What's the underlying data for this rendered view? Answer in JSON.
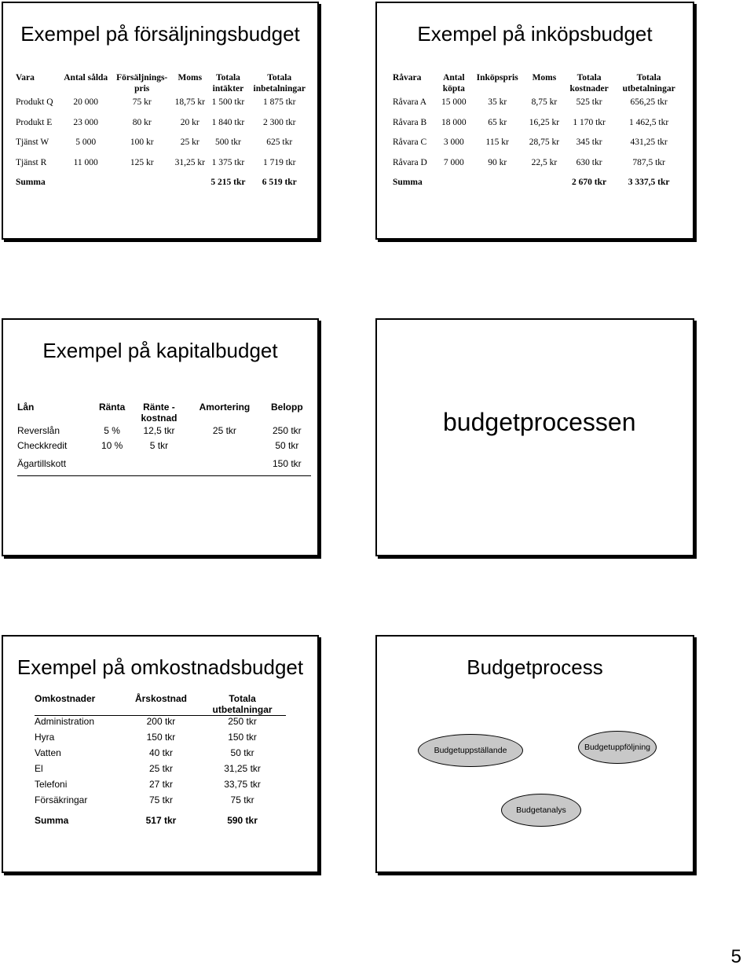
{
  "slide1": {
    "title": "Exempel på försäljningsbudget",
    "headers": [
      "Vara",
      "Antal sålda",
      "Försäljnings-\npris",
      "Moms",
      "Totala\nintäkter",
      "Totala\ninbetalningar"
    ],
    "rows": [
      [
        "Produkt Q",
        "20 000",
        "75 kr",
        "18,75 kr",
        "1 500 tkr",
        "1 875 tkr"
      ],
      [
        "Produkt E",
        "23 000",
        "80 kr",
        "20 kr",
        "1 840 tkr",
        "2 300 tkr"
      ],
      [
        "Tjänst W",
        "5 000",
        "100 kr",
        "25 kr",
        "500 tkr",
        "625 tkr"
      ],
      [
        "Tjänst R",
        "11 000",
        "125 kr",
        "31,25 kr",
        "1 375 tkr",
        "1 719 tkr"
      ]
    ],
    "summa": [
      "Summa",
      "",
      "",
      "",
      "5 215 tkr",
      "6 519 tkr"
    ]
  },
  "slide2": {
    "title": "Exempel på inköpsbudget",
    "headers": [
      "Råvara",
      "Antal\nköpta",
      "Inköpspris",
      "Moms",
      "Totala\nkostnader",
      "Totala\nutbetalningar"
    ],
    "rows": [
      [
        "Råvara A",
        "15 000",
        "35 kr",
        "8,75 kr",
        "525 tkr",
        "656,25 tkr"
      ],
      [
        "Råvara B",
        "18 000",
        "65 kr",
        "16,25 kr",
        "1 170 tkr",
        "1 462,5 tkr"
      ],
      [
        "Råvara C",
        "3 000",
        "115 kr",
        "28,75 kr",
        "345 tkr",
        "431,25 tkr"
      ],
      [
        "Råvara D",
        "7 000",
        "90 kr",
        "22,5 kr",
        "630 tkr",
        "787,5 tkr"
      ]
    ],
    "summa": [
      "Summa",
      "",
      "",
      "",
      "2 670 tkr",
      "3 337,5 tkr"
    ]
  },
  "slide3": {
    "title": "Exempel på kapitalbudget",
    "headers": [
      "Lån",
      "Ränta",
      "Ränte -\nkostnad",
      "Amortering",
      "Belopp"
    ],
    "rows": [
      [
        "Reverslån",
        "5 %",
        "12,5 tkr",
        "25 tkr",
        "250 tkr"
      ],
      [
        "Checkkredit",
        "10 %",
        "5 tkr",
        "",
        "50 tkr"
      ],
      [
        "Ägartillskott",
        "",
        "",
        "",
        "150 tkr"
      ]
    ]
  },
  "slide4": {
    "word": "budgetprocessen"
  },
  "slide5": {
    "title": "Exempel på omkostnadsbudget",
    "headers": [
      "Omkostnader",
      "Årskostnad",
      "Totala\nutbetalningar"
    ],
    "rows": [
      [
        "Administration",
        "200 tkr",
        "250 tkr"
      ],
      [
        "Hyra",
        "150 tkr",
        "150 tkr"
      ],
      [
        "Vatten",
        "40 tkr",
        "50 tkr"
      ],
      [
        "El",
        "25 tkr",
        "31,25 tkr"
      ],
      [
        "Telefoni",
        "27 tkr",
        "33,75 tkr"
      ],
      [
        "Försäkringar",
        "75 tkr",
        "75 tkr"
      ]
    ],
    "summa": [
      "Summa",
      "517 tkr",
      "590 tkr"
    ]
  },
  "slide6": {
    "title": "Budgetprocess",
    "nodes": [
      "Budgetuppställande",
      "Budgetuppföljning",
      "Budgetanalys"
    ],
    "node_color": "#c8c8c8"
  },
  "page_number": "5"
}
